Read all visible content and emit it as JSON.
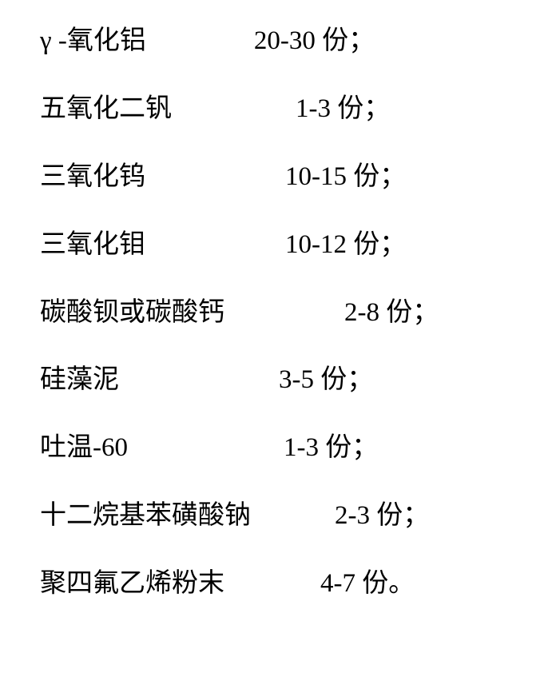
{
  "rows": [
    {
      "ingredient": "γ -氧化铝",
      "amount": "20-30 份；",
      "gap": 135
    },
    {
      "ingredient": "五氧化二钒",
      "amount": "1-3 份；",
      "gap": 155
    },
    {
      "ingredient": "三氧化钨",
      "amount": "10-15 份；",
      "gap": 175
    },
    {
      "ingredient": "三氧化钼",
      "amount": "10-12 份；",
      "gap": 175
    },
    {
      "ingredient": "碳酸钡或碳酸钙",
      "amount": "2-8 份；",
      "gap": 150
    },
    {
      "ingredient": "硅藻泥",
      "amount": "3-5 份；",
      "gap": 200
    },
    {
      "ingredient": "吐温-60",
      "amount": "1-3 份；",
      "gap": 195
    },
    {
      "ingredient": "十二烷基苯磺酸钠",
      "amount": "2-3 份；",
      "gap": 105
    },
    {
      "ingredient": "聚四氟乙烯粉末",
      "amount": "4-7 份。",
      "gap": 120
    }
  ],
  "style": {
    "font_size": 33,
    "text_color": "#000000",
    "background_color": "#ffffff",
    "font_family": "SimSun"
  }
}
